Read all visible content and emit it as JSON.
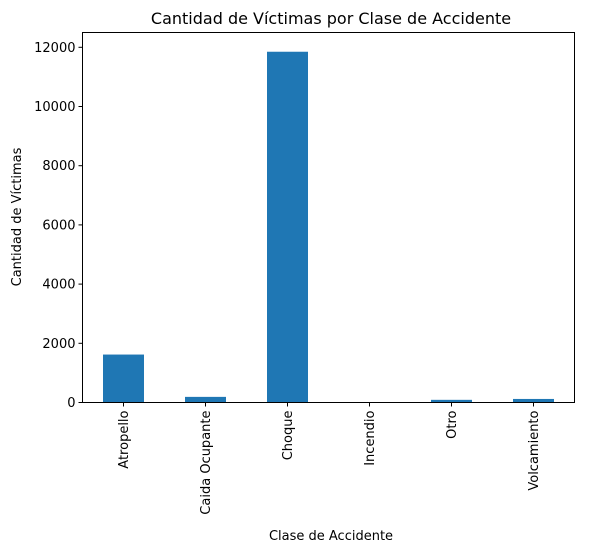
{
  "chart_data": {
    "type": "bar",
    "title": "Cantidad de Víctimas por Clase de Accidente",
    "xlabel": "Clase de Accidente",
    "ylabel": "Cantidad de Víctimas",
    "categories": [
      "Atropello",
      "Caida Ocupante",
      "Choque",
      "Incendio",
      "Otro",
      "Volcamiento"
    ],
    "values": [
      1620,
      190,
      11850,
      5,
      90,
      120
    ],
    "ylim": [
      0,
      12500
    ],
    "yticks": [
      "0",
      "2000",
      "4000",
      "6000",
      "8000",
      "10000",
      "12000"
    ],
    "bar_color": "#1f77b4",
    "grid": false,
    "legend": "none"
  }
}
